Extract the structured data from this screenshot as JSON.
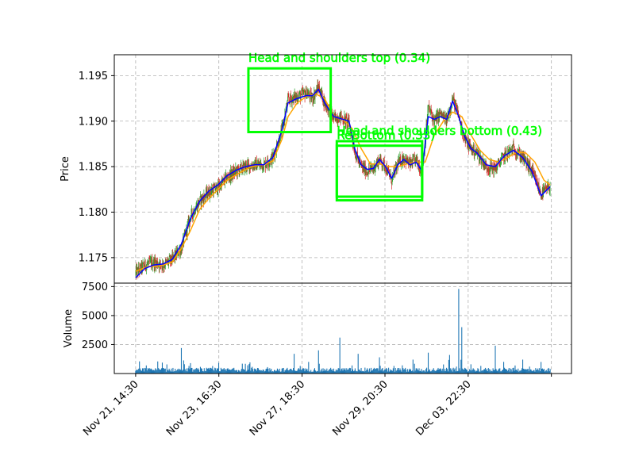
{
  "chart_data": {
    "type": "candlestick_with_volume",
    "price_panel": {
      "ylabel": "Price",
      "ylim": [
        1.1722,
        1.1973
      ],
      "yticks": [
        1.175,
        1.18,
        1.185,
        1.19,
        1.195
      ],
      "ytick_labels": [
        "1.175",
        "1.180",
        "1.185",
        "1.190",
        "1.195"
      ],
      "grid": true,
      "close_path": [
        [
          0,
          1.1733
        ],
        [
          3,
          1.1742
        ],
        [
          6,
          1.1745
        ],
        [
          9,
          1.1742
        ],
        [
          12,
          1.1748
        ],
        [
          15,
          1.176
        ],
        [
          18,
          1.1795
        ],
        [
          21,
          1.1812
        ],
        [
          24,
          1.1822
        ],
        [
          27,
          1.1827
        ],
        [
          30,
          1.1838
        ],
        [
          33,
          1.1845
        ],
        [
          36,
          1.185
        ],
        [
          39,
          1.1852
        ],
        [
          42,
          1.1852
        ],
        [
          45,
          1.186
        ],
        [
          48,
          1.189
        ],
        [
          50,
          1.1923
        ],
        [
          53,
          1.1927
        ],
        [
          56,
          1.1931
        ],
        [
          58,
          1.1925
        ],
        [
          60,
          1.1938
        ],
        [
          62,
          1.192
        ],
        [
          65,
          1.1903
        ],
        [
          67,
          1.1905
        ],
        [
          70,
          1.1898
        ],
        [
          72,
          1.1865
        ],
        [
          74,
          1.185
        ],
        [
          76,
          1.1845
        ],
        [
          78,
          1.1848
        ],
        [
          80,
          1.1858
        ],
        [
          82,
          1.185
        ],
        [
          84,
          1.1835
        ],
        [
          86,
          1.1853
        ],
        [
          88,
          1.186
        ],
        [
          90,
          1.1852
        ],
        [
          92,
          1.1858
        ],
        [
          94,
          1.1843
        ],
        [
          96,
          1.1915
        ],
        [
          98,
          1.19
        ],
        [
          100,
          1.1908
        ],
        [
          102,
          1.19
        ],
        [
          104,
          1.1925
        ],
        [
          106,
          1.1905
        ],
        [
          108,
          1.188
        ],
        [
          110,
          1.187
        ],
        [
          112,
          1.1865
        ],
        [
          115,
          1.185
        ],
        [
          118,
          1.1848
        ],
        [
          121,
          1.1862
        ],
        [
          124,
          1.187
        ],
        [
          127,
          1.186
        ],
        [
          130,
          1.1845
        ],
        [
          133,
          1.182
        ],
        [
          136,
          1.1828
        ]
      ],
      "ma_fast_path": [
        [
          0,
          1.1728
        ],
        [
          3,
          1.1738
        ],
        [
          6,
          1.1742
        ],
        [
          9,
          1.1743
        ],
        [
          12,
          1.1748
        ],
        [
          15,
          1.1765
        ],
        [
          18,
          1.1793
        ],
        [
          21,
          1.1812
        ],
        [
          24,
          1.1823
        ],
        [
          27,
          1.183
        ],
        [
          30,
          1.184
        ],
        [
          33,
          1.1846
        ],
        [
          36,
          1.185
        ],
        [
          39,
          1.1852
        ],
        [
          42,
          1.1852
        ],
        [
          45,
          1.186
        ],
        [
          48,
          1.189
        ],
        [
          50,
          1.192
        ],
        [
          53,
          1.1925
        ],
        [
          56,
          1.1928
        ],
        [
          58,
          1.1928
        ],
        [
          60,
          1.1935
        ],
        [
          62,
          1.192
        ],
        [
          65,
          1.1905
        ],
        [
          67,
          1.1903
        ],
        [
          70,
          1.19
        ],
        [
          72,
          1.1868
        ],
        [
          74,
          1.1852
        ],
        [
          76,
          1.1847
        ],
        [
          78,
          1.1848
        ],
        [
          80,
          1.1858
        ],
        [
          82,
          1.185
        ],
        [
          84,
          1.1837
        ],
        [
          86,
          1.1852
        ],
        [
          88,
          1.1858
        ],
        [
          90,
          1.1852
        ],
        [
          92,
          1.1855
        ],
        [
          94,
          1.1845
        ],
        [
          96,
          1.1905
        ],
        [
          98,
          1.1902
        ],
        [
          100,
          1.1905
        ],
        [
          102,
          1.1902
        ],
        [
          104,
          1.1922
        ],
        [
          106,
          1.1905
        ],
        [
          108,
          1.1883
        ],
        [
          110,
          1.187
        ],
        [
          112,
          1.1865
        ],
        [
          115,
          1.1852
        ],
        [
          118,
          1.185
        ],
        [
          121,
          1.1862
        ],
        [
          124,
          1.1868
        ],
        [
          127,
          1.186
        ],
        [
          130,
          1.1845
        ],
        [
          133,
          1.1818
        ],
        [
          136,
          1.1828
        ]
      ],
      "ma_slow_path": [
        [
          0,
          1.1735
        ],
        [
          4,
          1.174
        ],
        [
          8,
          1.1741
        ],
        [
          12,
          1.1745
        ],
        [
          15,
          1.176
        ],
        [
          18,
          1.178
        ],
        [
          21,
          1.1803
        ],
        [
          24,
          1.1815
        ],
        [
          27,
          1.1825
        ],
        [
          30,
          1.1835
        ],
        [
          34,
          1.1843
        ],
        [
          38,
          1.185
        ],
        [
          42,
          1.1852
        ],
        [
          45,
          1.1856
        ],
        [
          48,
          1.188
        ],
        [
          50,
          1.1905
        ],
        [
          53,
          1.192
        ],
        [
          56,
          1.1927
        ],
        [
          59,
          1.193
        ],
        [
          62,
          1.1925
        ],
        [
          65,
          1.1905
        ],
        [
          68,
          1.1902
        ],
        [
          71,
          1.1892
        ],
        [
          74,
          1.187
        ],
        [
          77,
          1.1853
        ],
        [
          80,
          1.1853
        ],
        [
          83,
          1.185
        ],
        [
          86,
          1.185
        ],
        [
          89,
          1.1853
        ],
        [
          92,
          1.1855
        ],
        [
          95,
          1.1855
        ],
        [
          98,
          1.1885
        ],
        [
          101,
          1.19
        ],
        [
          104,
          1.191
        ],
        [
          107,
          1.1905
        ],
        [
          110,
          1.1885
        ],
        [
          113,
          1.1868
        ],
        [
          116,
          1.1858
        ],
        [
          119,
          1.1855
        ],
        [
          122,
          1.186
        ],
        [
          125,
          1.1866
        ],
        [
          128,
          1.1865
        ],
        [
          131,
          1.1855
        ],
        [
          134,
          1.1835
        ],
        [
          136,
          1.183
        ]
      ],
      "patterns": [
        {
          "label": "Head and shoulders top (0.34)",
          "x_range": [
            37,
            64
          ],
          "y_range": [
            1.1888,
            1.1958
          ]
        },
        {
          "label": "Head and shoulders bottom (0.43)",
          "x_range": [
            66,
            94
          ],
          "y_range": [
            1.1817,
            1.1878
          ]
        },
        {
          "label": "ReBottom (0.33)",
          "x_range": [
            66,
            94
          ],
          "y_range": [
            1.1813,
            1.1873
          ]
        }
      ]
    },
    "volume_panel": {
      "ylabel": "Volume",
      "ylim": [
        0,
        7800
      ],
      "yticks": [
        2500,
        5000,
        7500
      ],
      "ytick_labels": [
        "2500",
        "5000",
        "7500"
      ],
      "grid": true,
      "spikes": [
        {
          "x": 15,
          "value": 2200
        },
        {
          "x": 52,
          "value": 1700
        },
        {
          "x": 60,
          "value": 2000
        },
        {
          "x": 67,
          "value": 3100
        },
        {
          "x": 73,
          "value": 1700
        },
        {
          "x": 80,
          "value": 1400
        },
        {
          "x": 91,
          "value": 1200
        },
        {
          "x": 96,
          "value": 1800
        },
        {
          "x": 103,
          "value": 1600
        },
        {
          "x": 106,
          "value": 7300
        },
        {
          "x": 107,
          "value": 4000
        },
        {
          "x": 118,
          "value": 2400
        },
        {
          "x": 127,
          "value": 1200
        },
        {
          "x": 133,
          "value": 1000
        }
      ],
      "color": "#1f77b4"
    },
    "xlim": [
      -7,
      143
    ],
    "x_ticks": [
      0,
      27.3,
      54.6,
      81.8,
      109.1,
      136.4
    ],
    "x_tick_labels": [
      "Nov 21, 14:30",
      "Nov 23, 16:30",
      "Nov 27, 18:30",
      "Nov 29, 20:30",
      "Dec 03, 22:30",
      ""
    ],
    "grid": true,
    "colors": {
      "up": "#2ca02c",
      "down": "#d62728",
      "ma_fast": "#0000ff",
      "ma_slow": "#ffa500",
      "pattern": "#00ff00",
      "grid": "#b0b0b0"
    }
  }
}
